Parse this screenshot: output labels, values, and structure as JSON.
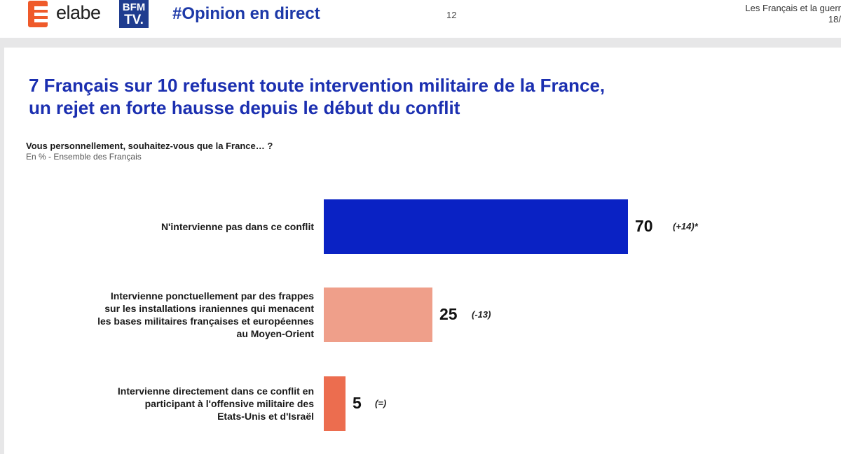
{
  "header": {
    "brand": "elabe",
    "partner_line1": "BFM",
    "partner_line2": "TV.",
    "hashtag": "#Opinion en direct",
    "page_number": "12",
    "right_line1": "Les Français et la guerr",
    "right_line2": "18/"
  },
  "slide": {
    "title_line1": "7 Français sur 10 refusent toute intervention militaire de la France,",
    "title_line2": "un rejet en forte hausse depuis le début du conflit",
    "question": "Vous personnellement, souhaitez-vous que la France… ?",
    "basis": "En % - Ensemble des Français"
  },
  "colors": {
    "title": "#1b2fb0",
    "bar_1": "#0a22c4",
    "bar_2": "#ef9f8a",
    "bar_3": "#ec6d4f"
  },
  "chart_data": {
    "type": "bar",
    "orientation": "horizontal",
    "categories": [
      [
        "N'intervienne pas dans ce conflit"
      ],
      [
        "Intervienne ponctuellement par des frappes",
        "sur les installations iraniennes qui menacent",
        "les bases militaires françaises et européennes",
        "au Moyen-Orient"
      ],
      [
        "Intervienne directement dans ce conflit en",
        "participant à l'offensive militaire des",
        "Etats-Unis et d'Israël"
      ]
    ],
    "values": [
      70,
      25,
      5
    ],
    "value_labels": [
      "70",
      "25",
      "5"
    ],
    "evolutions": [
      "(+14)*",
      "(-13)",
      "(=)"
    ],
    "xlim": [
      0,
      100
    ],
    "title": "",
    "xlabel": "",
    "ylabel": ""
  }
}
